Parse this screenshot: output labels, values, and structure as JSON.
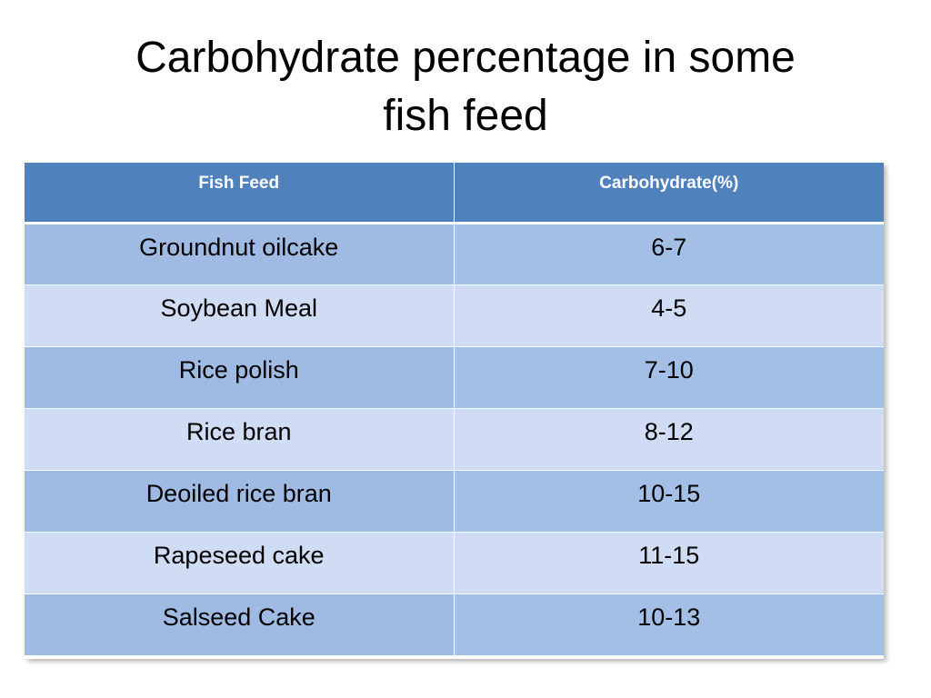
{
  "slide": {
    "title_line1": "Carbohydrate percentage in some",
    "title_line2": "fish feed"
  },
  "table": {
    "headers": [
      "Fish Feed",
      "Carbohydrate(%)"
    ],
    "rows": [
      [
        "Groundnut oilcake",
        "6-7"
      ],
      [
        "Soybean Meal",
        "4-5"
      ],
      [
        "Rice polish",
        "7-10"
      ],
      [
        "Rice bran",
        "8-12"
      ],
      [
        "Deoiled rice bran",
        "10-15"
      ],
      [
        "Rapeseed cake",
        "11-15"
      ],
      [
        "Salseed Cake",
        "10-13"
      ]
    ]
  },
  "colors": {
    "header_bg": "#4f81bd",
    "row_dark": "#a4bfe6",
    "row_light": "#cfdcf3"
  }
}
